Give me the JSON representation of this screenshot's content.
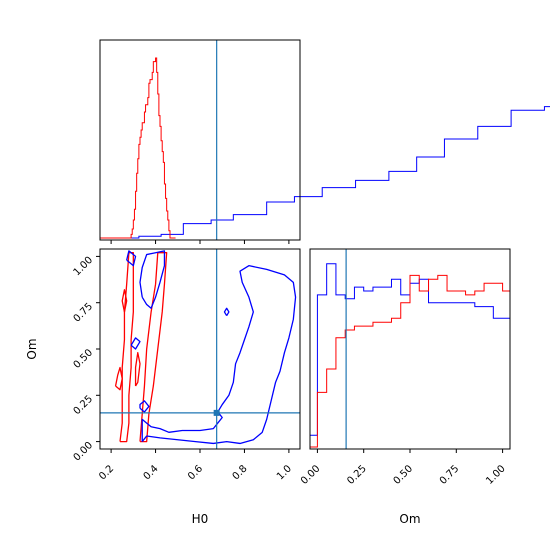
{
  "chart_data": {
    "type": "corner",
    "parameters": [
      "H0",
      "Om"
    ],
    "colors": {
      "blue": "#0000ff",
      "red": "#ff0000",
      "truth": "#1f77b4"
    },
    "truth": {
      "H0": 0.675,
      "Om": 0.155
    },
    "panels": [
      {
        "name": "H0-marginal",
        "type": "histogram",
        "xlim": [
          0.15,
          1.05
        ],
        "bin_width": 0.025,
        "series": [
          {
            "color": "#0000ff",
            "start": 0.15,
            "bin_width": 0.025,
            "counts": [
              0.0,
              0.0,
              0.0,
              0.0,
              0.0,
              0.0,
              0.0,
              0.01,
              0.01,
              0.01,
              0.01,
              0.02,
              0.02,
              0.02,
              0.02,
              0.08,
              0.08,
              0.08,
              0.08,
              0.08,
              0.1,
              0.1,
              0.1,
              0.1,
              0.13,
              0.13,
              0.13,
              0.13,
              0.13,
              0.13,
              0.2,
              0.2,
              0.2,
              0.2,
              0.2,
              0.23,
              0.23,
              0.23,
              0.23,
              0.23,
              0.28,
              0.28,
              0.28,
              0.28,
              0.28,
              0.28,
              0.32,
              0.32,
              0.32,
              0.32,
              0.32,
              0.32,
              0.37,
              0.37,
              0.37,
              0.37,
              0.37,
              0.45,
              0.45,
              0.45,
              0.45,
              0.45,
              0.55,
              0.55,
              0.55,
              0.55,
              0.55,
              0.55,
              0.62,
              0.62,
              0.62,
              0.62,
              0.62,
              0.62,
              0.71,
              0.71,
              0.71,
              0.71,
              0.71,
              0.71,
              0.73,
              0.73,
              0.73,
              0.73,
              0.73,
              0.73,
              0.82,
              0.82,
              0.82,
              0.82,
              0.82,
              0.82,
              0.88,
              0.88,
              0.88,
              0.88,
              0.88,
              0.88,
              0.92,
              0.92,
              0.92,
              0.92,
              0.92,
              1.0,
              1.0,
              1.0,
              1.0,
              1.0,
              0.8,
              0.8,
              0.8,
              0.8,
              0.8,
              0.48,
              0.48,
              0.48,
              0.48,
              0.48,
              0.48,
              0.08,
              0.08,
              0.08,
              0.08,
              0.08
            ]
          },
          {
            "color": "#ff0000",
            "start": 0.15,
            "bin_width": 0.005,
            "counts": [
              0.0,
              0.0,
              0.0,
              0.0,
              0.0,
              0.0,
              0.0,
              0.0,
              0.0,
              0.0,
              0.0,
              0.0,
              0.0,
              0.0,
              0.0,
              0.0,
              0.0,
              0.0,
              0.0,
              0.0,
              0.0,
              0.0,
              0.0,
              0.0,
              0.0,
              0.0,
              0.0,
              0.0,
              0.02,
              0.05,
              0.1,
              0.16,
              0.26,
              0.36,
              0.44,
              0.52,
              0.56,
              0.6,
              0.64,
              0.64,
              0.7,
              0.74,
              0.74,
              0.78,
              0.86,
              0.88,
              0.88,
              0.92,
              0.98,
              0.98,
              1.0,
              0.92,
              0.8,
              0.68,
              0.62,
              0.54,
              0.48,
              0.42,
              0.3,
              0.22,
              0.15,
              0.1,
              0.04,
              0.0,
              0.0,
              0.0,
              0.0,
              0.0
            ]
          }
        ]
      },
      {
        "name": "H0-Om-contour",
        "type": "contour",
        "xlim": [
          0.15,
          1.05
        ],
        "ylim": [
          -0.04,
          1.04
        ],
        "xticks": [
          "0.2",
          "0.4",
          "0.6",
          "0.8",
          "1.0"
        ],
        "yticks": [
          "0.00",
          "0.25",
          "0.50",
          "0.75",
          "1.00"
        ],
        "xlabel": "H0",
        "ylabel": "Om",
        "blue_contours": [
          [
            [
              0.34,
              0.0
            ],
            [
              0.36,
              0.03
            ],
            [
              0.42,
              0.02
            ],
            [
              0.5,
              0.01
            ],
            [
              0.58,
              0.0
            ],
            [
              0.66,
              -0.01
            ],
            [
              0.72,
              0.0
            ],
            [
              0.78,
              -0.01
            ],
            [
              0.84,
              0.01
            ],
            [
              0.88,
              0.05
            ],
            [
              0.9,
              0.12
            ],
            [
              0.92,
              0.22
            ],
            [
              0.94,
              0.32
            ],
            [
              0.96,
              0.38
            ],
            [
              0.98,
              0.48
            ],
            [
              1.0,
              0.56
            ],
            [
              1.02,
              0.66
            ],
            [
              1.03,
              0.78
            ],
            [
              1.02,
              0.86
            ],
            [
              0.98,
              0.9
            ],
            [
              0.9,
              0.93
            ],
            [
              0.82,
              0.95
            ],
            [
              0.78,
              0.92
            ],
            [
              0.79,
              0.86
            ],
            [
              0.82,
              0.78
            ],
            [
              0.84,
              0.7
            ],
            [
              0.82,
              0.62
            ],
            [
              0.8,
              0.55
            ],
            [
              0.78,
              0.48
            ],
            [
              0.76,
              0.42
            ],
            [
              0.75,
              0.32
            ],
            [
              0.73,
              0.25
            ],
            [
              0.7,
              0.2
            ],
            [
              0.68,
              0.16
            ],
            [
              0.7,
              0.13
            ],
            [
              0.68,
              0.1
            ],
            [
              0.66,
              0.07
            ],
            [
              0.6,
              0.06
            ],
            [
              0.52,
              0.06
            ],
            [
              0.46,
              0.05
            ],
            [
              0.42,
              0.07
            ],
            [
              0.38,
              0.08
            ],
            [
              0.36,
              0.1
            ],
            [
              0.34,
              0.12
            ],
            [
              0.34,
              0.0
            ]
          ],
          [
            [
              0.33,
              0.18
            ],
            [
              0.35,
              0.16
            ],
            [
              0.37,
              0.19
            ],
            [
              0.35,
              0.22
            ],
            [
              0.33,
              0.2
            ],
            [
              0.33,
              0.18
            ]
          ],
          [
            [
              0.29,
              0.52
            ],
            [
              0.31,
              0.5
            ],
            [
              0.33,
              0.54
            ],
            [
              0.31,
              0.56
            ],
            [
              0.29,
              0.52
            ]
          ],
          [
            [
              0.72,
              0.68
            ],
            [
              0.73,
              0.7
            ],
            [
              0.72,
              0.72
            ],
            [
              0.71,
              0.7
            ],
            [
              0.72,
              0.68
            ]
          ],
          [
            [
              0.34,
              0.78
            ],
            [
              0.33,
              0.86
            ],
            [
              0.34,
              0.94
            ],
            [
              0.36,
              1.01
            ],
            [
              0.4,
              1.02
            ],
            [
              0.44,
              1.03
            ],
            [
              0.44,
              0.95
            ],
            [
              0.42,
              0.86
            ],
            [
              0.4,
              0.78
            ],
            [
              0.38,
              0.72
            ],
            [
              0.36,
              0.74
            ],
            [
              0.34,
              0.78
            ]
          ],
          [
            [
              0.27,
              0.98
            ],
            [
              0.28,
              1.03
            ],
            [
              0.31,
              1.0
            ],
            [
              0.3,
              0.95
            ],
            [
              0.27,
              0.98
            ]
          ]
        ],
        "red_contours": [
          [
            [
              0.24,
              0.0
            ],
            [
              0.25,
              0.1
            ],
            [
              0.25,
              0.25
            ],
            [
              0.25,
              0.4
            ],
            [
              0.26,
              0.55
            ],
            [
              0.26,
              0.7
            ],
            [
              0.27,
              0.85
            ],
            [
              0.28,
              1.02
            ],
            [
              0.3,
              1.02
            ],
            [
              0.3,
              0.85
            ],
            [
              0.3,
              0.7
            ],
            [
              0.29,
              0.55
            ],
            [
              0.29,
              0.4
            ],
            [
              0.28,
              0.25
            ],
            [
              0.28,
              0.1
            ],
            [
              0.27,
              0.0
            ],
            [
              0.24,
              0.0
            ]
          ],
          [
            [
              0.33,
              0.0
            ],
            [
              0.34,
              0.15
            ],
            [
              0.35,
              0.3
            ],
            [
              0.36,
              0.5
            ],
            [
              0.38,
              0.7
            ],
            [
              0.4,
              0.85
            ],
            [
              0.41,
              1.02
            ],
            [
              0.45,
              1.02
            ],
            [
              0.44,
              0.85
            ],
            [
              0.43,
              0.7
            ],
            [
              0.41,
              0.5
            ],
            [
              0.39,
              0.3
            ],
            [
              0.37,
              0.15
            ],
            [
              0.36,
              0.0
            ],
            [
              0.33,
              0.0
            ]
          ],
          [
            [
              0.26,
              0.7
            ],
            [
              0.25,
              0.76
            ],
            [
              0.26,
              0.82
            ],
            [
              0.27,
              0.76
            ],
            [
              0.26,
              0.7
            ]
          ],
          [
            [
              0.31,
              0.3
            ],
            [
              0.31,
              0.4
            ],
            [
              0.32,
              0.48
            ],
            [
              0.33,
              0.42
            ],
            [
              0.32,
              0.32
            ],
            [
              0.31,
              0.3
            ]
          ],
          [
            [
              0.22,
              0.3
            ],
            [
              0.23,
              0.36
            ],
            [
              0.24,
              0.4
            ],
            [
              0.25,
              0.34
            ],
            [
              0.24,
              0.28
            ],
            [
              0.22,
              0.3
            ]
          ]
        ]
      },
      {
        "name": "Om-marginal",
        "type": "histogram",
        "xlim": [
          -0.04,
          1.04
        ],
        "xticks": [
          "0.00",
          "0.25",
          "0.50",
          "0.75",
          "1.00"
        ],
        "xlabel": "Om",
        "series": [
          {
            "color": "#0000ff",
            "start": -0.05,
            "bin_width": 0.05,
            "counts": [
              0.06,
              0.78,
              0.94,
              0.78,
              0.76,
              0.82,
              0.8,
              0.82,
              0.82,
              0.86,
              0.78,
              0.84,
              0.86,
              0.74,
              0.74,
              0.74,
              0.74,
              0.74,
              0.72,
              0.72,
              0.66,
              0.66,
              0.2
            ]
          },
          {
            "color": "#ff0000",
            "start": -0.05,
            "bin_width": 0.05,
            "counts": [
              0.0,
              0.28,
              0.4,
              0.56,
              0.6,
              0.62,
              0.62,
              0.64,
              0.64,
              0.66,
              0.74,
              0.88,
              0.8,
              0.86,
              0.88,
              0.8,
              0.8,
              0.78,
              0.8,
              0.84,
              0.84,
              0.8,
              0.0
            ]
          }
        ]
      }
    ]
  }
}
